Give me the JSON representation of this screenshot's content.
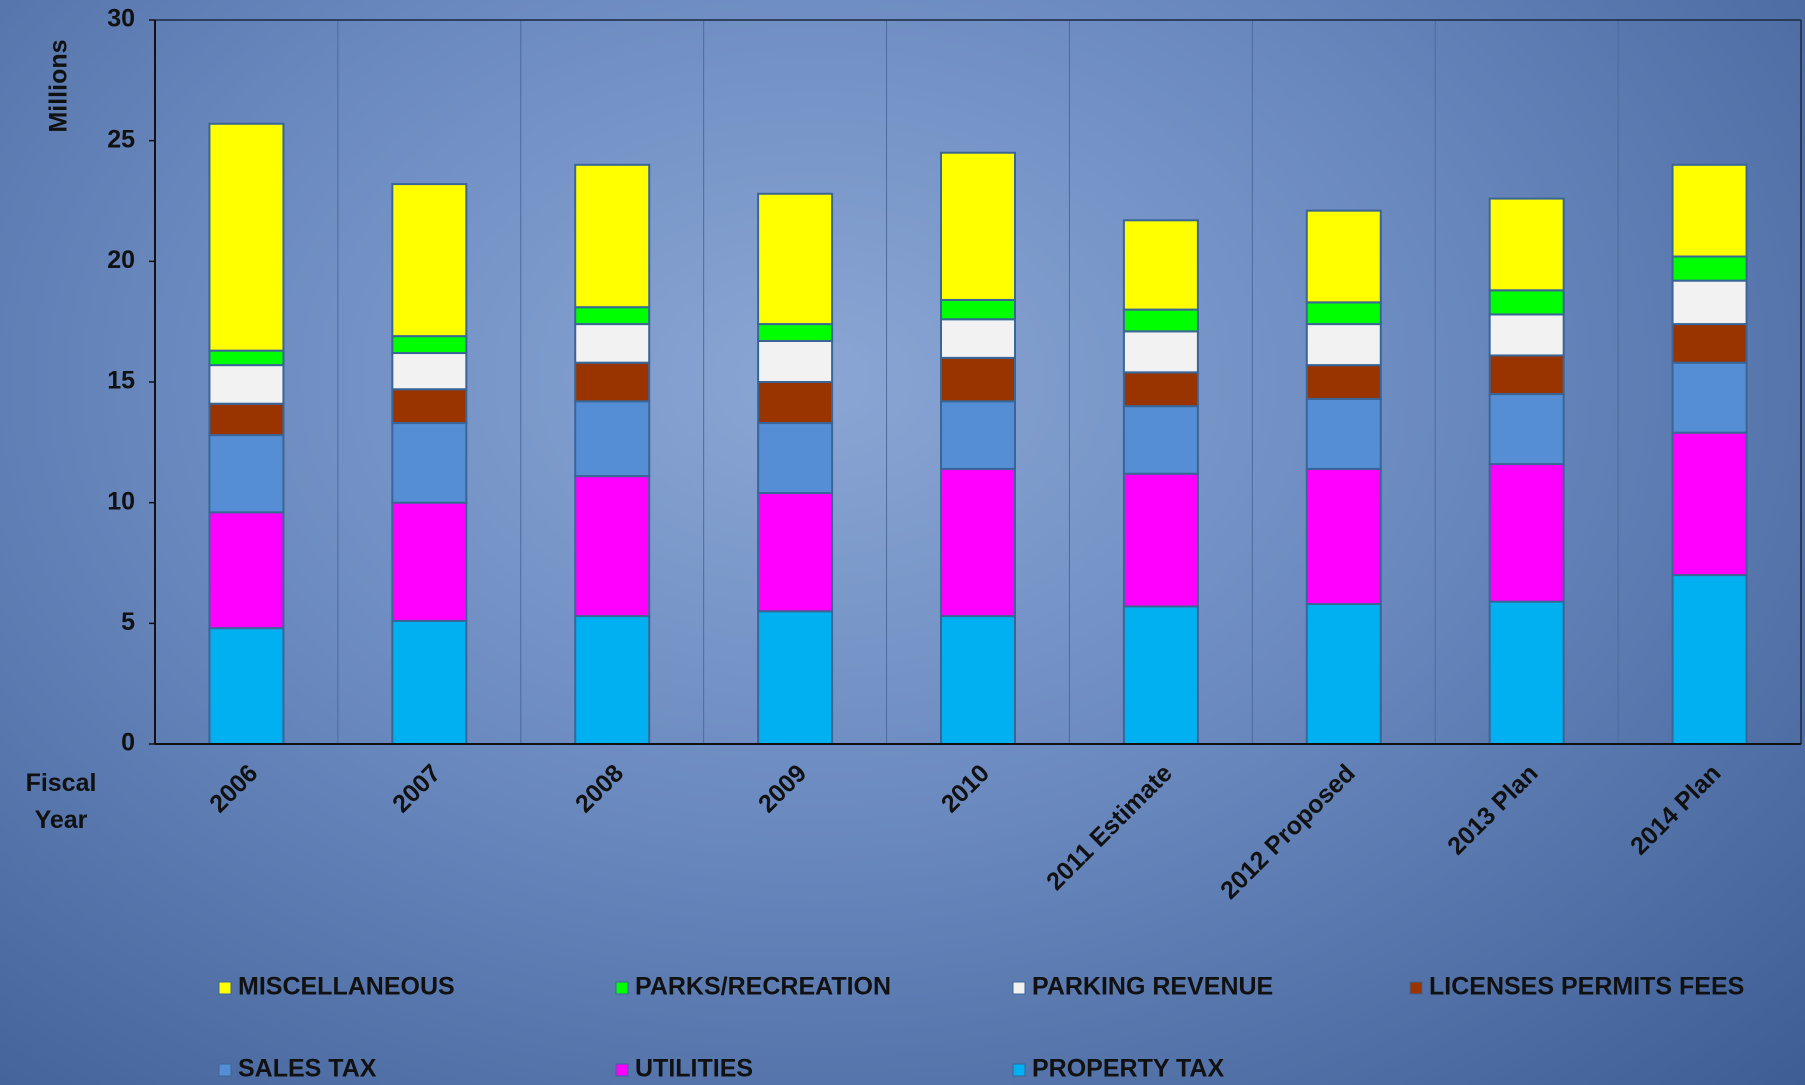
{
  "chart_data": {
    "type": "stacked_bar",
    "y_label": "Millions",
    "x_label": "Fiscal Year",
    "categories": [
      "2006",
      "2007",
      "2008",
      "2009",
      "2010",
      "2011 Estimate",
      "2012 Proposed",
      "2013 Plan",
      "2014 Plan"
    ],
    "series": [
      {
        "name": "MISCELLANEOUS",
        "color": "#ffff00",
        "values": [
          9.4,
          6.3,
          5.9,
          5.4,
          6.1,
          3.7,
          3.8,
          3.8,
          3.8
        ]
      },
      {
        "name": "PARKS/RECREATION",
        "color": "#00ff00",
        "values": [
          0.6,
          0.7,
          0.7,
          0.7,
          0.8,
          0.9,
          0.9,
          1.0,
          1.0
        ]
      },
      {
        "name": "PARKING REVENUE",
        "color": "#f2f2f2",
        "values": [
          1.6,
          1.5,
          1.6,
          1.7,
          1.6,
          1.7,
          1.7,
          1.7,
          1.8
        ]
      },
      {
        "name": "LICENSES PERMITS FEES",
        "color": "#993300",
        "values": [
          1.3,
          1.4,
          1.6,
          1.7,
          1.8,
          1.4,
          1.4,
          1.6,
          1.6
        ]
      },
      {
        "name": "SALES TAX",
        "color": "#558ed5",
        "values": [
          3.2,
          3.3,
          3.1,
          2.9,
          2.8,
          2.8,
          2.9,
          2.9,
          2.9
        ]
      },
      {
        "name": "UTILITIES",
        "color": "#ff00ff",
        "values": [
          4.8,
          4.9,
          5.8,
          4.9,
          6.1,
          5.5,
          5.6,
          5.7,
          5.9
        ]
      },
      {
        "name": "PROPERTY TAX",
        "color": "#00b0f0",
        "values": [
          4.8,
          5.1,
          5.3,
          5.5,
          5.3,
          5.7,
          5.8,
          5.9,
          7.0
        ]
      }
    ],
    "ylim": [
      0,
      30
    ],
    "yticks": [
      0,
      5,
      10,
      15,
      20,
      25,
      30
    ],
    "grid": false,
    "legend": "bottom"
  }
}
